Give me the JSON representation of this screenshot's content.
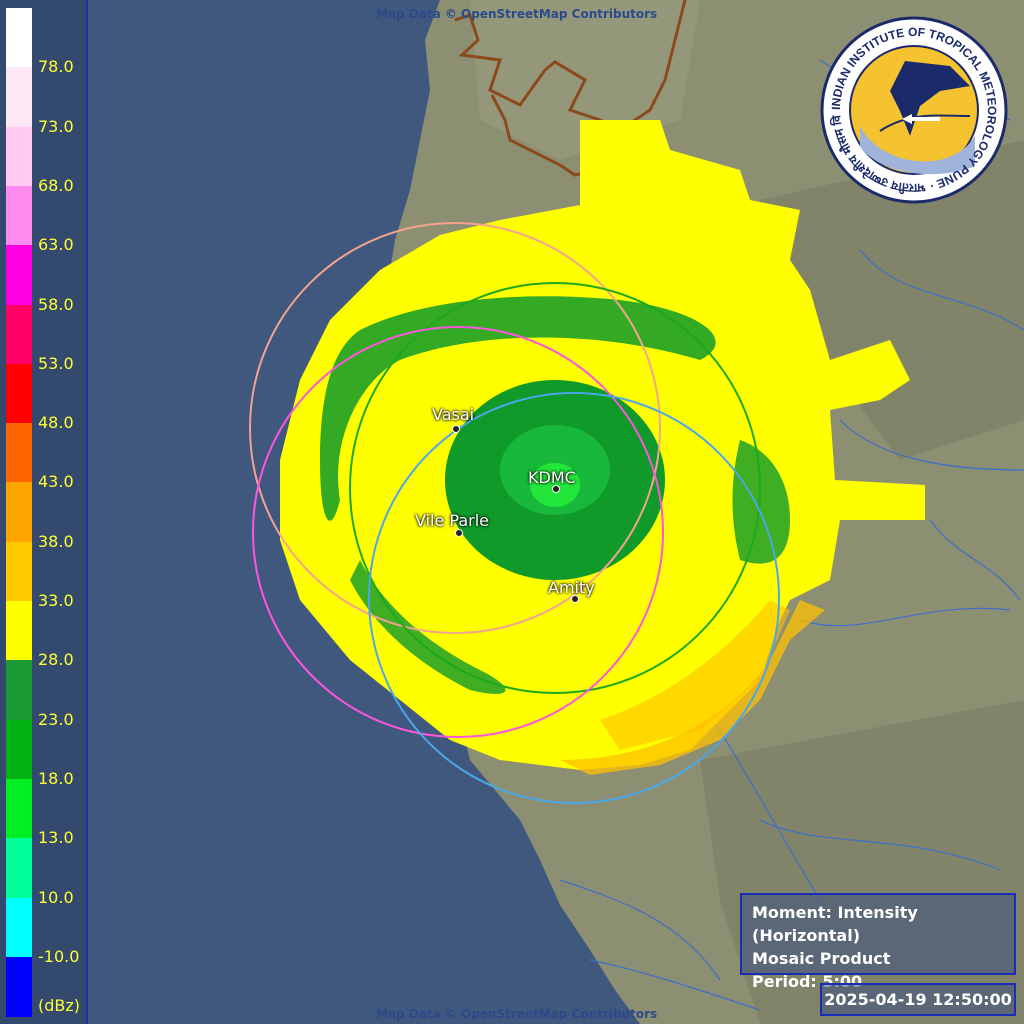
{
  "map": {
    "credit_top": "Map Data © OpenStreetMap Contributors",
    "credit_bottom": "Map Data © OpenStreetMap Contributors",
    "colors": {
      "sea": "#40587e",
      "land": "#8d8f73",
      "border": "#8b4a1c",
      "rain_light": "#ffff00",
      "rain_moderate": "#ffbf00",
      "rain_green": "#0f9a2a",
      "rain_bright": "#22e63a"
    },
    "sites": [
      {
        "name": "Vasai",
        "ring_color": "#f4a38f"
      },
      {
        "name": "KDMC",
        "ring_color": "#1ea81e"
      },
      {
        "name": "Vile Parle",
        "ring_color": "#ff55dd"
      },
      {
        "name": "Amity",
        "ring_color": "#4aa7e8"
      }
    ]
  },
  "legend": {
    "unit": "(dBz)",
    "ticks": [
      "78.0",
      "73.0",
      "68.0",
      "63.0",
      "58.0",
      "53.0",
      "48.0",
      "43.0",
      "38.0",
      "33.0",
      "28.0",
      "23.0",
      "18.0",
      "13.0",
      "10.0",
      "-10.0"
    ],
    "colors": [
      "#ffffff",
      "#ffe8f6",
      "#ffc9f2",
      "#ff8cf0",
      "#ff00e0",
      "#ff0066",
      "#ff0000",
      "#ff6600",
      "#ffa500",
      "#ffc800",
      "#ffff00",
      "#1b9a33",
      "#02b012",
      "#00ee22",
      "#00ff99",
      "#00ffff",
      "#0000ff"
    ]
  },
  "logo": {
    "text": "INDIAN INSTITUTE OF TROPICAL METEOROLOGY PUNE",
    "hindi": "भारतीय उष्णदेशीय मौसम विज्ञान संस्थान पुणे",
    "icon": "iitm-emblem-icon"
  },
  "info": {
    "moment": "Moment: Intensity (Horizontal)",
    "product": "Mosaic Product",
    "period": "Period: 5:00",
    "timestamp": "2025-04-19 12:50:00"
  }
}
